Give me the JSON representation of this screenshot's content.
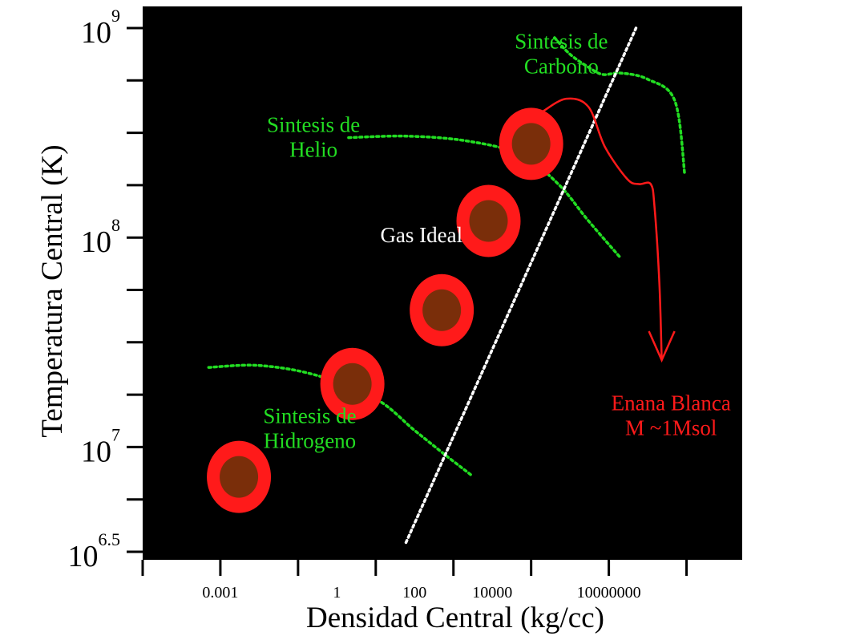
{
  "chart_data": {
    "type": "scatter",
    "title": "",
    "xlabel": "Densidad Central (kg/cc)",
    "ylabel": "Temperatura Central (K)",
    "x_scale": "log",
    "y_scale": "log",
    "xlim": [
      1e-05,
      10000000000
    ],
    "ylim": [
      3162277.66,
      1000000000
    ],
    "x_ticks": [
      1e-05,
      0.001,
      0.1,
      10,
      1000,
      100000,
      10000000,
      1000000000
    ],
    "x_tick_labels": [
      "0.001",
      "1",
      "100",
      "10000",
      "10000000"
    ],
    "x_tick_label_values": [
      0.001,
      1,
      100,
      10000,
      10000000
    ],
    "y_ticks": [
      3162277.66,
      5623413.25,
      10000000,
      17782794.1,
      31622776.6,
      56234132.5,
      100000000,
      177827941,
      316227766,
      562341325,
      1000000000
    ],
    "y_tick_labels": [
      {
        "base": "10",
        "exp": "6.5",
        "value": 3162277.66
      },
      {
        "base": "10",
        "exp": "7",
        "value": 10000000
      },
      {
        "base": "10",
        "exp": "8",
        "value": 100000000
      },
      {
        "base": "10",
        "exp": "9",
        "value": 1000000000
      }
    ],
    "stars": [
      {
        "x": 0.003,
        "y": 7200000
      },
      {
        "x": 2.5,
        "y": 20000000
      },
      {
        "x": 500,
        "y": 45000000
      },
      {
        "x": 8000,
        "y": 120000000
      },
      {
        "x": 100000,
        "y": 280000000
      }
    ],
    "regions": [
      {
        "name": "hidrogeno",
        "x": [
          0.0005,
          0.01,
          0.3,
          10,
          100,
          700,
          3000
        ],
        "y": [
          24000000,
          24500000,
          22000000,
          17000000,
          12000000,
          9000000,
          7300000
        ]
      },
      {
        "name": "helio",
        "x": [
          2,
          60,
          2000,
          50000,
          500000,
          3000000,
          20000000
        ],
        "y": [
          300000000,
          305000000,
          290000000,
          250000000,
          180000000,
          120000000,
          80000000
        ]
      },
      {
        "name": "carbono",
        "x": [
          400000,
          1000000,
          3000000,
          7000000,
          20000000,
          100000000,
          500000000,
          900000000
        ],
        "y": [
          900000000,
          750000000,
          650000000,
          600000000,
          610000000,
          570000000,
          450000000,
          200000000
        ]
      }
    ],
    "degeneracy_line": {
      "x": [
        60,
        50000000
      ],
      "y": [
        3500000,
        1000000000
      ]
    },
    "track": {
      "x": [
        200000,
        800000,
        3000000,
        8000000,
        30000000,
        60000000,
        120000000,
        150000000,
        200000000,
        230000000
      ],
      "y": [
        400000000,
        460000000,
        420000000,
        270000000,
        190000000,
        180000000,
        180000000,
        140000000,
        60000000,
        26000000
      ]
    },
    "annotations": [
      {
        "lines": [
          "Sintesis de",
          "Carbono"
        ],
        "color": "#22dd22",
        "x": 600000,
        "y": 800000000
      },
      {
        "lines": [
          "Sintesis de",
          "Helio"
        ],
        "color": "#22dd22",
        "x": 0.25,
        "y": 320000000
      },
      {
        "lines": [
          "Gas Ideal"
        ],
        "color": "#ffffff",
        "x": 150,
        "y": 95000000
      },
      {
        "lines": [
          "Sintesis de",
          "Hidrogeno"
        ],
        "color": "#22dd22",
        "x": 0.2,
        "y": 13000000
      },
      {
        "lines": [
          "Enana Blanca",
          "M   ~1Msol"
        ],
        "color": "#ff1a1a",
        "x": 400000000,
        "y": 15000000
      }
    ],
    "colors": {
      "background": "#000000",
      "axes": "#000000",
      "region": "#22dd22",
      "degeneracy": "#ffffff",
      "track": "#ff1a1a",
      "star_outer": "#ff1a1a",
      "star_inner": "#7a2e0a"
    },
    "grid": false,
    "legend": "none"
  }
}
